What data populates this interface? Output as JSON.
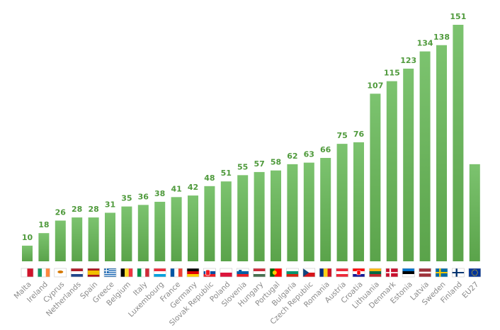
{
  "chart_data": {
    "type": "bar",
    "categories": [
      "Malta",
      "Ireland",
      "Cyprus",
      "Netherlands",
      "Spain",
      "Greece",
      "Belgium",
      "Italy",
      "Luxembourg",
      "France",
      "Germany",
      "Slovak Republic",
      "Poland",
      "Slovenia",
      "Hungary",
      "Portugal",
      "Bulgaria",
      "Czech Republic",
      "Romania",
      "Austria",
      "Croatia",
      "Lithuania",
      "Denmark",
      "Estonia",
      "Latvia",
      "Sweden",
      "Finland",
      "EU27"
    ],
    "values": [
      10,
      18,
      26,
      28,
      28,
      31,
      35,
      36,
      38,
      41,
      42,
      48,
      51,
      55,
      57,
      58,
      62,
      63,
      66,
      75,
      76,
      107,
      115,
      123,
      134,
      138,
      151,
      null
    ],
    "value_labels": [
      "10",
      "18",
      "26",
      "28",
      "28",
      "31",
      "35",
      "36",
      "38",
      "41",
      "42",
      "48",
      "51",
      "55",
      "57",
      "58",
      "62",
      "63",
      "66",
      "75",
      "76",
      "107",
      "115",
      "123",
      "134",
      "138",
      "151",
      ""
    ],
    "eu27_bar_value": 62,
    "ylim": [
      0,
      151
    ],
    "title": "",
    "xlabel": "",
    "ylabel": "",
    "grid": false,
    "bar_color_top": "#7cc36f",
    "bar_color_bottom": "#5aa34a",
    "label_color": "#4f9a3c",
    "flags": [
      "malta-flag",
      "ireland-flag",
      "cyprus-flag",
      "netherlands-flag",
      "spain-flag",
      "greece-flag",
      "belgium-flag",
      "italy-flag",
      "luxembourg-flag",
      "france-flag",
      "germany-flag",
      "slovakia-flag",
      "poland-flag",
      "slovenia-flag",
      "hungary-flag",
      "portugal-flag",
      "bulgaria-flag",
      "czech-flag",
      "romania-flag",
      "austria-flag",
      "croatia-flag",
      "lithuania-flag",
      "denmark-flag",
      "estonia-flag",
      "latvia-flag",
      "sweden-flag",
      "finland-flag",
      "eu-flag"
    ]
  }
}
